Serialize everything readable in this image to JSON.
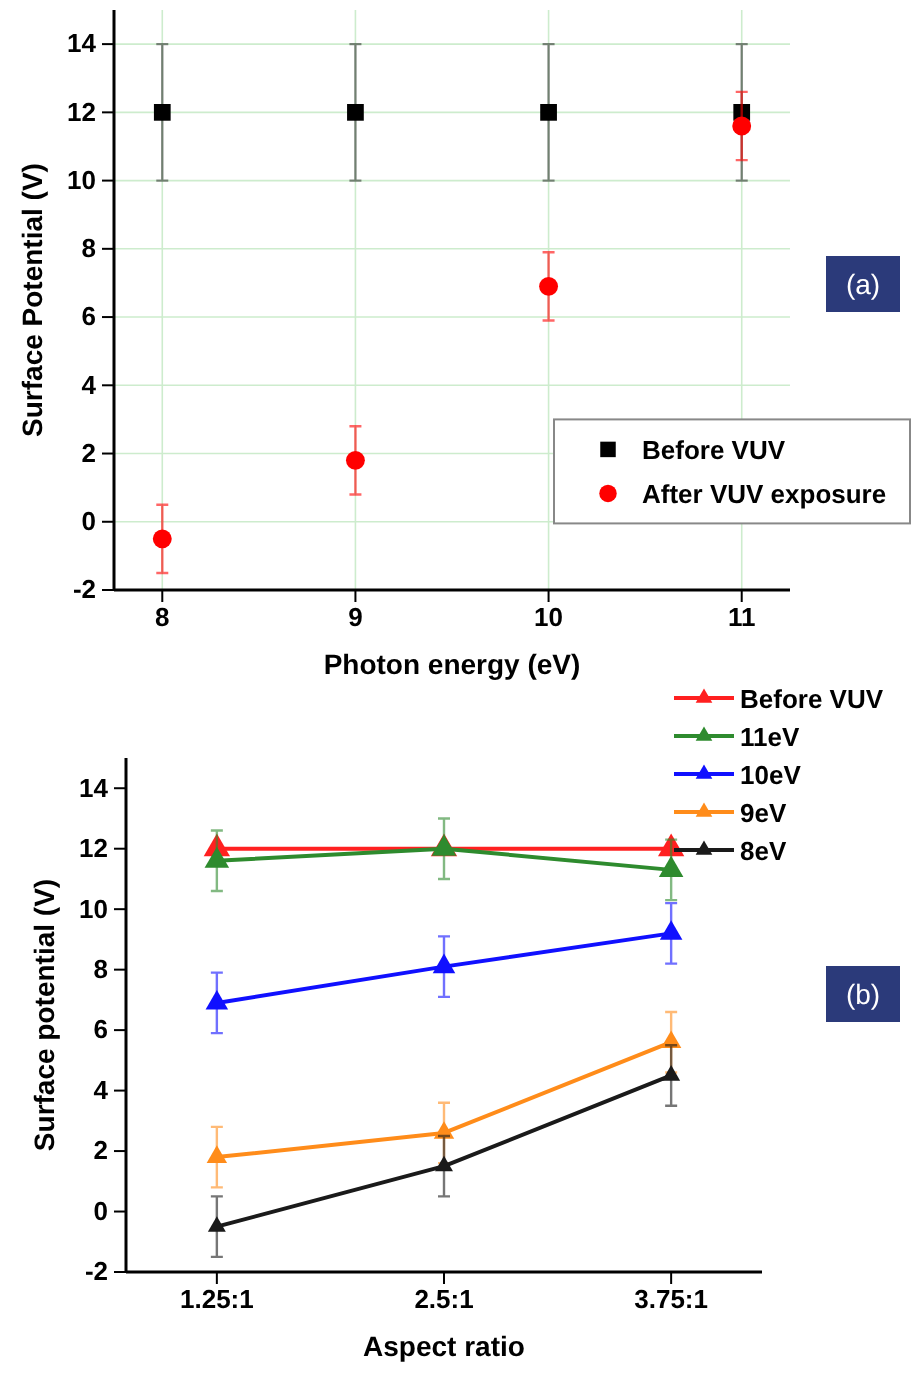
{
  "chart_data": [
    {
      "type": "scatter",
      "xlabel": "Photon energy (eV)",
      "ylabel": "Surface Potential (V)",
      "x": [
        8,
        9,
        10,
        11
      ],
      "xlim": [
        7.75,
        11.25
      ],
      "xticks": [
        8,
        9,
        10,
        11
      ],
      "ylim": [
        -2,
        15
      ],
      "yticks": [
        -2,
        0,
        2,
        4,
        6,
        8,
        10,
        12,
        14
      ],
      "grid": true,
      "legend": "bottom right",
      "annotations": [
        "(a)"
      ],
      "series": [
        {
          "name": "Before VUV",
          "color": "#000000",
          "marker": "square",
          "values": [
            12,
            12,
            12,
            12
          ],
          "errors": [
            2,
            2,
            2,
            2
          ]
        },
        {
          "name": "After VUV exposure",
          "color": "#ff0000",
          "marker": "circle",
          "values": [
            -0.5,
            1.8,
            6.9,
            11.6
          ],
          "errors": [
            1,
            1,
            1,
            1
          ]
        }
      ]
    },
    {
      "type": "line",
      "xlabel": "Aspect ratio",
      "ylabel": "Surface potential (V)",
      "categories": [
        "1.25:1",
        "2.5:1",
        "3.75:1"
      ],
      "ylim": [
        -2,
        15
      ],
      "yticks": [
        -2,
        0,
        2,
        4,
        6,
        8,
        10,
        12,
        14
      ],
      "legend": "top right",
      "marker": "triangle",
      "annotations": [
        "(b)"
      ],
      "series": [
        {
          "name": "Before VUV",
          "color": "#ff2020",
          "values": [
            12,
            12,
            12
          ]
        },
        {
          "name": "11eV",
          "color": "#2e8b2e",
          "values": [
            11.6,
            12,
            11.3
          ],
          "errors": [
            1,
            1,
            1
          ]
        },
        {
          "name": "10eV",
          "color": "#1010ff",
          "values": [
            6.9,
            8.1,
            9.2
          ],
          "errors": [
            1,
            1,
            1
          ]
        },
        {
          "name": "9eV",
          "color": "#ff8c1a",
          "values": [
            1.8,
            2.6,
            5.6
          ],
          "errors": [
            1,
            1,
            1
          ]
        },
        {
          "name": "8eV",
          "color": "#1a1a1a",
          "values": [
            -0.5,
            1.5,
            4.5
          ],
          "errors": [
            1,
            1,
            1
          ]
        }
      ]
    }
  ]
}
